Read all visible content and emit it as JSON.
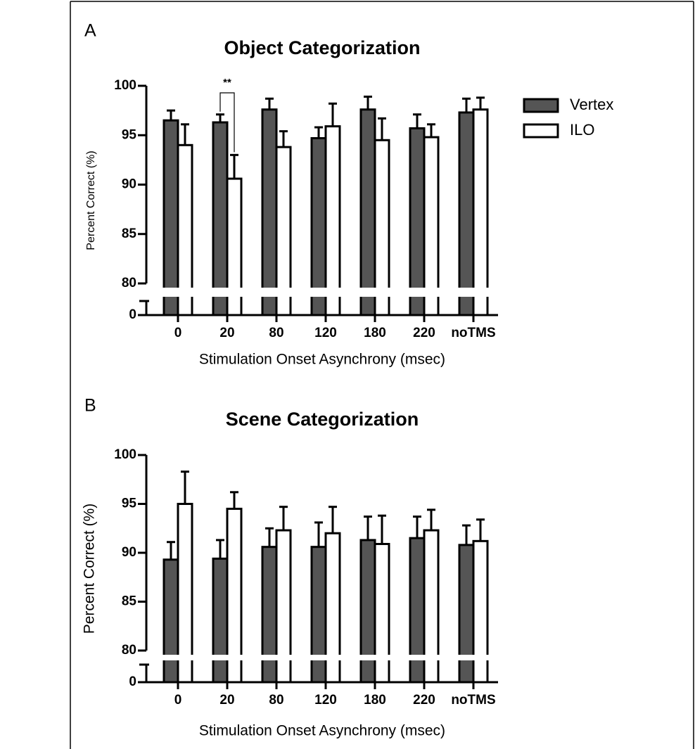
{
  "chart_data": [
    {
      "type": "bar",
      "panel": "A",
      "title": "Object Categorization",
      "xlabel": "Stimulation Onset Asynchrony (msec)",
      "ylabel": "Percent Correct (%)",
      "categories": [
        "0",
        "20",
        "80",
        "120",
        "180",
        "220",
        "noTMS"
      ],
      "series": [
        {
          "name": "Vertex",
          "color": "#555555",
          "values": [
            96.5,
            96.3,
            97.6,
            94.7,
            97.6,
            95.7,
            97.3
          ],
          "errors": [
            1.0,
            0.8,
            1.1,
            1.1,
            1.3,
            1.4,
            1.4
          ]
        },
        {
          "name": "ILO",
          "color": "#ffffff",
          "values": [
            94.0,
            90.6,
            93.8,
            95.9,
            94.5,
            94.8,
            97.6
          ],
          "errors": [
            2.1,
            2.4,
            1.6,
            2.3,
            2.2,
            1.3,
            1.2
          ]
        }
      ],
      "ylim": [
        80,
        100
      ],
      "yticks": [
        0,
        80,
        85,
        90,
        95,
        100
      ],
      "axis_break": true,
      "annotation": "**",
      "legend": "right"
    },
    {
      "type": "bar",
      "panel": "B",
      "title": "Scene Categorization",
      "xlabel": "Stimulation Onset Asynchrony (msec)",
      "ylabel": "Percent Correct (%)",
      "categories": [
        "0",
        "20",
        "80",
        "120",
        "180",
        "220",
        "noTMS"
      ],
      "series": [
        {
          "color": "#555555",
          "values": [
            89.3,
            89.4,
            90.6,
            90.6,
            91.3,
            91.5,
            90.8
          ],
          "errors": [
            1.8,
            1.9,
            1.9,
            2.5,
            2.4,
            2.2,
            2.0
          ]
        },
        {
          "color": "#ffffff",
          "values": [
            95.0,
            94.5,
            92.3,
            92.0,
            90.9,
            92.3,
            91.2
          ],
          "errors": [
            3.3,
            1.7,
            2.4,
            2.7,
            2.9,
            2.1,
            2.2
          ]
        }
      ],
      "ylim": [
        80,
        100
      ],
      "yticks": [
        0,
        80,
        85,
        90,
        95,
        100
      ],
      "axis_break": true
    }
  ]
}
